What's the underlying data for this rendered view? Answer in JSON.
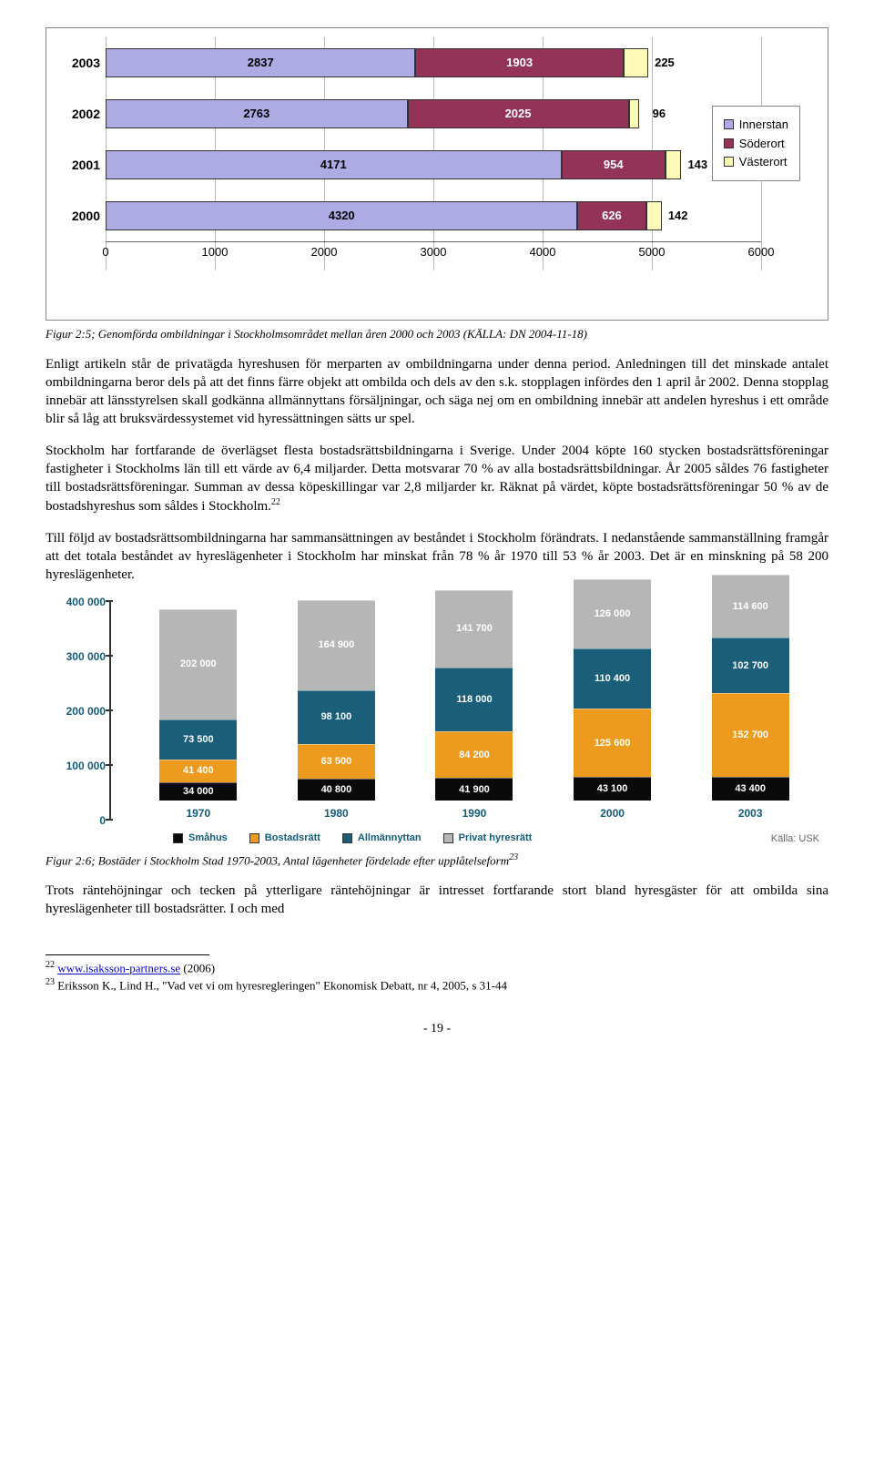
{
  "chart1": {
    "type": "stacked-horizontal-bar",
    "x_max": 6000,
    "x_ticks": [
      0,
      1000,
      2000,
      3000,
      4000,
      5000,
      6000
    ],
    "colors": {
      "innerstan": "#aeaae4",
      "soderort": "#933358",
      "vasterort": "#fdfab9"
    },
    "legend": [
      "Innerstan",
      "Söderort",
      "Västerort"
    ],
    "rows": [
      {
        "year": "2003",
        "innerstan": 2837,
        "soderort": 1903,
        "vasterort": 225
      },
      {
        "year": "2002",
        "innerstan": 2763,
        "soderort": 2025,
        "vasterort": 96
      },
      {
        "year": "2001",
        "innerstan": 4171,
        "soderort": 954,
        "vasterort": 143
      },
      {
        "year": "2000",
        "innerstan": 4320,
        "soderort": 626,
        "vasterort": 142
      }
    ]
  },
  "caption1": "Figur 2:5; Genomförda ombildningar i Stockholmsområdet mellan åren 2000 och 2003 (KÄLLA: DN 2004-11-18)",
  "para1": "Enligt artikeln står de privatägda hyreshusen för merparten av ombildningarna under denna period. Anledningen till det minskade antalet ombildningarna beror dels på att det finns färre objekt att ombilda och dels av den s.k. stopplagen infördes den 1 april år 2002. Denna stopplag innebär att länsstyrelsen skall godkänna allmännyttans försäljningar, och säga nej om en ombildning innebär att andelen hyreshus i ett område blir så låg att bruksvärdessystemet vid hyressättningen sätts ur spel.",
  "para2a": "Stockholm har fortfarande de överlägset flesta bostadsrättsbildningarna i Sverige. Under 2004 köpte 160 stycken bostadsrättsföreningar fastigheter i Stockholms län till ett värde av 6,4 miljarder. Detta motsvarar 70 % av alla bostadsrättsbildningar. År 2005 såldes 76 fastigheter till bostadsrättsföreningar. Summan av dessa köpeskillingar var 2,8 miljarder kr. Räknat på värdet, köpte bostadsrättsföreningar 50 % av de bostadshyreshus som såldes i Stockholm.",
  "para2_sup": "22",
  "para3": "Till följd av bostadsrättsombildningarna har sammansättningen av beståndet i Stockholm förändrats. I nedanstående sammanställning framgår att det totala beståndet av hyreslägenheter i Stockholm har minskat från 78 % år 1970 till 53 % år 2003. Det är en minskning på 58 200 hyreslägenheter.",
  "chart2": {
    "type": "stacked-vertical-bar",
    "y_max": 400000,
    "y_ticks": [
      {
        "v": 0,
        "label": "0"
      },
      {
        "v": 100000,
        "label": "100 000"
      },
      {
        "v": 200000,
        "label": "200 000"
      },
      {
        "v": 300000,
        "label": "300 000"
      },
      {
        "v": 400000,
        "label": "400 000"
      }
    ],
    "colors": {
      "smahus": "#0a0a0a",
      "bostadsratt": "#ed9b1f",
      "allmannyttan": "#1a5e7a",
      "privat": "#b6b6b6"
    },
    "legend": [
      {
        "key": "smahus",
        "label": "Småhus"
      },
      {
        "key": "bostadsratt",
        "label": "Bostadsrätt"
      },
      {
        "key": "allmannyttan",
        "label": "Allmännyttan"
      },
      {
        "key": "privat",
        "label": "Privat hyresrätt"
      }
    ],
    "cols": [
      {
        "year": "1970",
        "smahus": "34 000",
        "smahus_v": 34000,
        "bostadsratt": "41 400",
        "bostadsratt_v": 41400,
        "allmannyttan": "73 500",
        "allmannyttan_v": 73500,
        "privat": "202 000",
        "privat_v": 202000
      },
      {
        "year": "1980",
        "smahus": "40 800",
        "smahus_v": 40800,
        "bostadsratt": "63 500",
        "bostadsratt_v": 63500,
        "allmannyttan": "98 100",
        "allmannyttan_v": 98100,
        "privat": "164 900",
        "privat_v": 164900
      },
      {
        "year": "1990",
        "smahus": "41 900",
        "smahus_v": 41900,
        "bostadsratt": "84 200",
        "bostadsratt_v": 84200,
        "allmannyttan": "118 000",
        "allmannyttan_v": 118000,
        "privat": "141 700",
        "privat_v": 141700
      },
      {
        "year": "2000",
        "smahus": "43 100",
        "smahus_v": 43100,
        "bostadsratt": "125 600",
        "bostadsratt_v": 125600,
        "allmannyttan": "110 400",
        "allmannyttan_v": 110400,
        "privat": "126 000",
        "privat_v": 126000
      },
      {
        "year": "2003",
        "smahus": "43 400",
        "smahus_v": 43400,
        "bostadsratt": "152 700",
        "bostadsratt_v": 152700,
        "allmannyttan": "102 700",
        "allmannyttan_v": 102700,
        "privat": "114 600",
        "privat_v": 114600
      }
    ],
    "source": "Källa: USK"
  },
  "caption2": "Figur 2:6; Bostäder i Stockholm Stad 1970-2003, Antal lägenheter fördelade efter upplåtelseform",
  "caption2_sup": "23",
  "para4": "Trots räntehöjningar och tecken på ytterligare räntehöjningar är intresset fortfarande stort bland hyresgäster för att ombilda sina hyreslägenheter till bostadsrätter. I och med",
  "footnotes": {
    "f22_num": "22",
    "f22_link": "www.isaksson-partners.se",
    "f22_year": " (2006)",
    "f23_num": "23",
    "f23_text": " Eriksson K., Lind H., \"Vad vet vi om hyresregleringen\" Ekonomisk Debatt, nr 4, 2005, s 31-44"
  },
  "pagenum": "- 19 -"
}
